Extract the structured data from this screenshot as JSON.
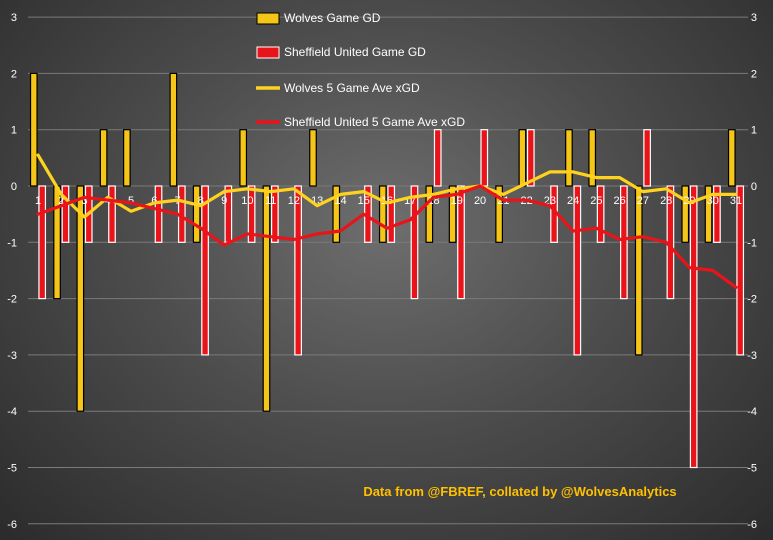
{
  "colors": {
    "wolves_bar": "#F5C518",
    "sheffield_bar": "#E8141A",
    "wolves_line": "#FFD21F",
    "sheffield_line": "#E8141A",
    "bar_border_wolves": "#000000",
    "bar_border_sheffield": "#FFFFFF",
    "grid": "#7a7a7a",
    "tick_text": "#FFFFFF",
    "credit_text": "#FFC000"
  },
  "chart_data": {
    "type": "bar",
    "title": "",
    "xlabel": "",
    "ylabel": "",
    "ylim": [
      -6,
      3
    ],
    "yticks": [
      "-6",
      "-5",
      "-4",
      "-3",
      "-2",
      "-1",
      "0",
      "1",
      "2",
      "3"
    ],
    "grid": true,
    "legend_position": "top-center",
    "annotation": "Data from @FBREF, collated by @WolvesAnalytics",
    "categories": [
      "1",
      "2",
      "3",
      "4",
      "5",
      "6",
      "7",
      "8",
      "9",
      "10",
      "11",
      "12",
      "13",
      "14",
      "15",
      "16",
      "17",
      "18",
      "19",
      "20",
      "21",
      "22",
      "23",
      "24",
      "25",
      "26",
      "27",
      "28",
      "29",
      "30",
      "31"
    ],
    "series": [
      {
        "name": "Wolves Game GD",
        "kind": "bar",
        "values": [
          2,
          -2,
          -4,
          1,
          1,
          0,
          2,
          -1,
          0,
          1,
          -4,
          0,
          1,
          -1,
          0,
          -1,
          0,
          -1,
          -1,
          0,
          -1,
          1,
          0,
          1,
          1,
          0,
          -3,
          0,
          -1,
          -1,
          1
        ]
      },
      {
        "name": "Sheffield United Game GD",
        "kind": "bar",
        "values": [
          -2,
          -1,
          -1,
          -1,
          0,
          -1,
          -1,
          -3,
          -1,
          -1,
          -1,
          -3,
          0,
          0,
          -1,
          -1,
          -2,
          1,
          -2,
          1,
          0,
          1,
          -1,
          -3,
          -1,
          -2,
          1,
          -2,
          -5,
          -1,
          -3
        ]
      },
      {
        "name": "Wolves 5 Game Ave xGD",
        "kind": "line",
        "values": [
          0.55,
          -0.15,
          -0.55,
          -0.2,
          -0.45,
          -0.3,
          -0.25,
          -0.35,
          -0.1,
          -0.05,
          -0.1,
          -0.05,
          -0.35,
          -0.15,
          -0.1,
          -0.3,
          -0.2,
          -0.15,
          -0.05,
          0.0,
          -0.15,
          0.05,
          0.25,
          0.25,
          0.15,
          0.15,
          -0.1,
          -0.05,
          -0.3,
          -0.15,
          -0.15
        ]
      },
      {
        "name": "Sheffield United 5 Game Ave xGD",
        "kind": "line",
        "values": [
          -0.5,
          -0.35,
          -0.2,
          -0.25,
          -0.3,
          -0.4,
          -0.5,
          -0.75,
          -1.05,
          -0.85,
          -0.9,
          -0.95,
          -0.85,
          -0.8,
          -0.5,
          -0.75,
          -0.6,
          -0.2,
          -0.15,
          0.0,
          -0.25,
          -0.25,
          -0.35,
          -0.8,
          -0.75,
          -0.95,
          -0.9,
          -1.0,
          -1.45,
          -1.5,
          -1.8
        ]
      }
    ]
  }
}
